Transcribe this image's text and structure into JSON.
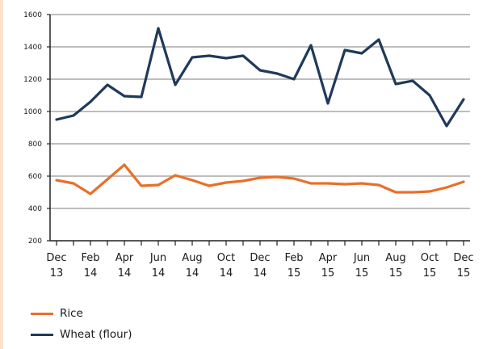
{
  "chart_data": {
    "type": "line",
    "categories": [
      "Dec 13",
      "Jan 14",
      "Feb 14",
      "Mar 14",
      "Apr 14",
      "May 14",
      "Jun 14",
      "Jul 14",
      "Aug 14",
      "Sep 14",
      "Oct 14",
      "Nov 14",
      "Dec 14",
      "Jan 15",
      "Feb 15",
      "Mar 15",
      "Apr 15",
      "May 15",
      "Jun 15",
      "Jul 15",
      "Aug 15",
      "Sep 15",
      "Oct 15",
      "Nov 15",
      "Dec 15"
    ],
    "x_tick_labels": [
      {
        "line1": "Dec",
        "line2": "13"
      },
      {
        "line1": "Feb",
        "line2": "14"
      },
      {
        "line1": "Apr",
        "line2": "14"
      },
      {
        "line1": "Jun",
        "line2": "14"
      },
      {
        "line1": "Aug",
        "line2": "14"
      },
      {
        "line1": "Oct",
        "line2": "14"
      },
      {
        "line1": "Dec",
        "line2": "14"
      },
      {
        "line1": "Feb",
        "line2": "15"
      },
      {
        "line1": "Apr",
        "line2": "15"
      },
      {
        "line1": "Jun",
        "line2": "15"
      },
      {
        "line1": "Aug",
        "line2": "15"
      },
      {
        "line1": "Oct",
        "line2": "15"
      },
      {
        "line1": "Dec",
        "line2": "15"
      }
    ],
    "y_ticks": [
      200,
      400,
      600,
      800,
      1000,
      1200,
      1400,
      1600
    ],
    "ylim": [
      200,
      1600
    ],
    "grid": true,
    "legend_position": "bottom-left",
    "series": [
      {
        "name": "Rice",
        "color": "#e8702a",
        "values": [
          575,
          555,
          490,
          580,
          670,
          540,
          545,
          605,
          575,
          540,
          560,
          570,
          590,
          595,
          585,
          555,
          555,
          550,
          555,
          545,
          500,
          500,
          505,
          530,
          565
        ]
      },
      {
        "name": "Wheat (flour)",
        "color": "#1f3a5a",
        "values": [
          950,
          975,
          1060,
          1165,
          1095,
          1090,
          1515,
          1165,
          1335,
          1345,
          1330,
          1345,
          1255,
          1235,
          1200,
          1410,
          1050,
          1380,
          1360,
          1445,
          1170,
          1190,
          1100,
          910,
          1075
        ]
      }
    ]
  }
}
